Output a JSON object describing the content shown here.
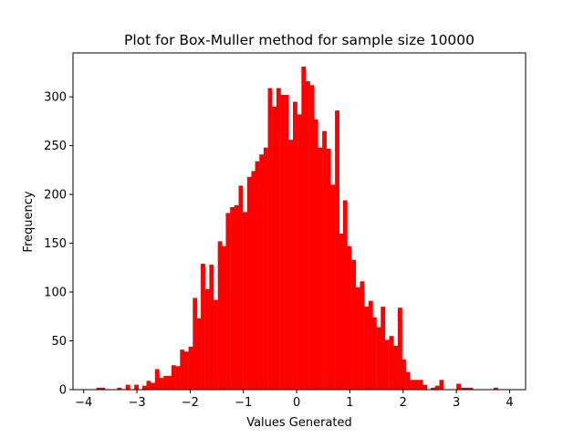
{
  "chart_data": {
    "type": "bar",
    "title": "Plot for Box-Muller method for sample size 10000",
    "xlabel": "Values Generated",
    "ylabel": "Frequency",
    "xlim": [
      -4.2,
      4.3
    ],
    "ylim": [
      0,
      345
    ],
    "x_ticks": [
      -4,
      -3,
      -2,
      -1,
      0,
      1,
      2,
      3,
      4
    ],
    "y_ticks": [
      0,
      50,
      100,
      150,
      200,
      250,
      300
    ],
    "grid": false,
    "bar_color": "#ff0000",
    "bin_width": 0.0785,
    "bin_left_edges": [
      -3.76,
      -3.68,
      -3.6,
      -3.53,
      -3.45,
      -3.37,
      -3.29,
      -3.21,
      -3.13,
      -3.05,
      -2.98,
      -2.9,
      -2.82,
      -2.74,
      -2.66,
      -2.58,
      -2.5,
      -2.43,
      -2.35,
      -2.27,
      -2.19,
      -2.11,
      -2.03,
      -1.95,
      -1.88,
      -1.8,
      -1.72,
      -1.64,
      -1.56,
      -1.48,
      -1.4,
      -1.33,
      -1.25,
      -1.17,
      -1.09,
      -1.01,
      -0.93,
      -0.85,
      -0.78,
      -0.7,
      -0.62,
      -0.54,
      -0.46,
      -0.38,
      -0.3,
      -0.23,
      -0.15,
      -0.07,
      0.01,
      0.09,
      0.17,
      0.25,
      0.32,
      0.4,
      0.48,
      0.56,
      0.64,
      0.72,
      0.8,
      0.87,
      0.95,
      1.03,
      1.11,
      1.19,
      1.27,
      1.35,
      1.42,
      1.5,
      1.58,
      1.66,
      1.74,
      1.82,
      1.9,
      1.97,
      2.05,
      2.13,
      2.21,
      2.29,
      2.37,
      2.45,
      2.52,
      2.6,
      2.68,
      2.76,
      2.84,
      2.92,
      3.0,
      3.07,
      3.15,
      3.23,
      3.31,
      3.39,
      3.47,
      3.55,
      3.62,
      3.7,
      3.78,
      3.86
    ],
    "values": [
      2,
      2,
      0,
      0,
      0,
      2,
      0,
      5,
      0,
      5,
      0,
      4,
      9,
      7,
      21,
      12,
      14,
      14,
      25,
      24,
      41,
      39,
      44,
      94,
      73,
      129,
      103,
      128,
      92,
      152,
      147,
      181,
      187,
      189,
      209,
      182,
      218,
      224,
      234,
      241,
      248,
      309,
      290,
      309,
      302,
      302,
      256,
      295,
      282,
      331,
      316,
      312,
      277,
      248,
      265,
      247,
      210,
      286,
      160,
      194,
      147,
      133,
      105,
      111,
      85,
      91,
      74,
      64,
      85,
      51,
      55,
      45,
      84,
      31,
      18,
      10,
      10,
      10,
      5,
      0,
      2,
      4,
      10,
      0,
      0,
      0,
      6,
      2,
      2,
      2,
      0,
      0,
      0,
      0,
      0,
      2,
      0,
      0
    ]
  }
}
